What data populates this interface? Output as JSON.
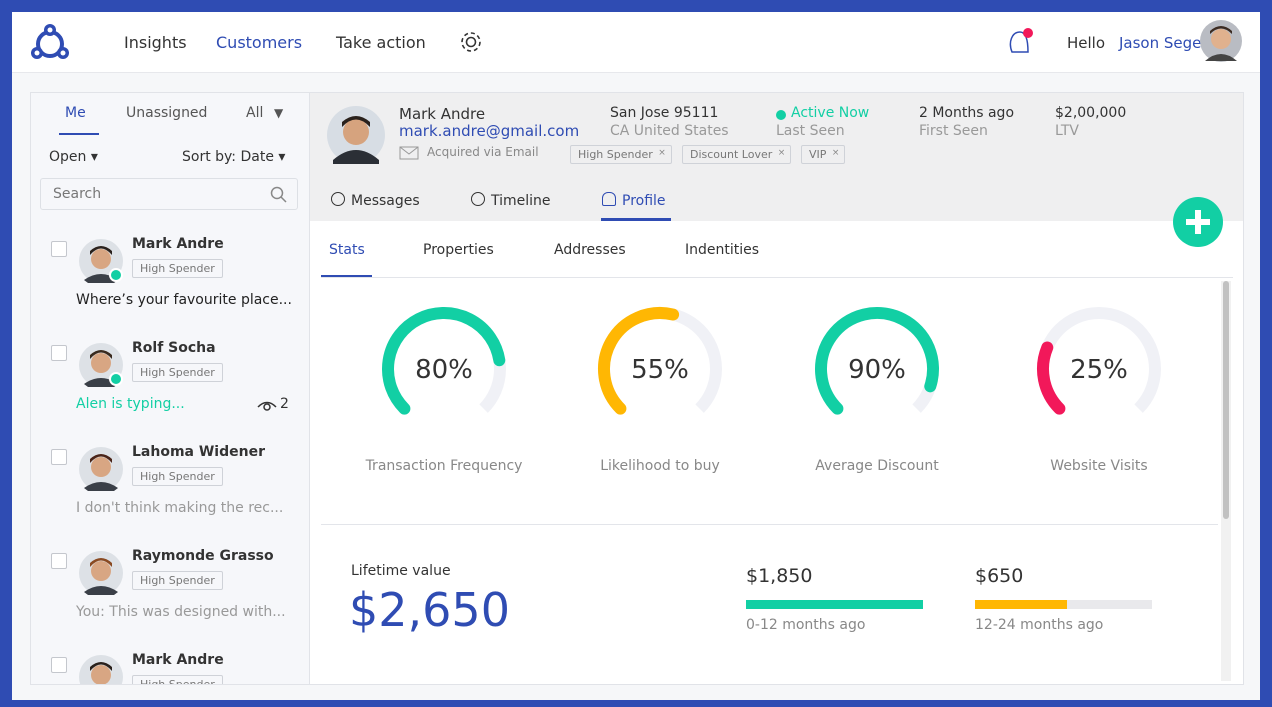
{
  "nav": {
    "items": [
      "Insights",
      "Customers",
      "Take action"
    ],
    "active": 1,
    "greeting": "Hello",
    "user": "Jason Segel"
  },
  "sidebar": {
    "tabs": [
      "Me",
      "Unassigned",
      "All"
    ],
    "filter": "Open",
    "sort": "Sort by: Date",
    "search": "Search",
    "conversations": [
      {
        "name": "Mark Andre",
        "tag": "High Spender",
        "message": "Where’s your favourite place...",
        "online": true
      },
      {
        "name": "Rolf Socha",
        "tag": "High Spender",
        "message": "Alen is typing...",
        "online": true,
        "typing": true,
        "views": "2"
      },
      {
        "name": "Lahoma Widener",
        "tag": "High Spender",
        "message": "I don't think making the rec..."
      },
      {
        "name": "Raymonde Grasso",
        "tag": "High Spender",
        "message": "You: This was designed with..."
      },
      {
        "name": "Mark Andre",
        "tag": "High Spender"
      }
    ]
  },
  "customer": {
    "name": "Mark Andre",
    "email": "mark.andre@gmail.com",
    "acquired": "Acquired via Email",
    "location": "San Jose 95111",
    "country": "CA United States",
    "status": "Active Now",
    "status_label": "Last Seen",
    "first_seen": "2 Months ago",
    "first_seen_label": "First Seen",
    "ltv": "$2,00,000",
    "ltv_label": "LTV",
    "tags": [
      "High Spender",
      "Discount Lover",
      "VIP"
    ]
  },
  "tabs": [
    "Messages",
    "Timeline",
    "Profile"
  ],
  "subtabs": [
    "Stats",
    "Properties",
    "Addresses",
    "Indentities"
  ],
  "stats": [
    {
      "label": "Transaction Frequency",
      "value": 80,
      "value_label": "80%",
      "color": "#12cfa4"
    },
    {
      "label": "Likelihood to buy",
      "value": 55,
      "value_label": "55%",
      "color": "#ffb703"
    },
    {
      "label": "Average Discount",
      "value": 90,
      "value_label": "90%",
      "color": "#12cfa4"
    },
    {
      "label": "Website Visits",
      "value": 25,
      "value_label": "25%",
      "color": "#f2185a"
    }
  ],
  "lifetime": {
    "label": "Lifetime value",
    "total": "$2,650",
    "periods": [
      {
        "amount": "$1,850",
        "label": "0-12 months ago"
      },
      {
        "amount": "$650",
        "label": "12-24 months ago"
      }
    ]
  }
}
